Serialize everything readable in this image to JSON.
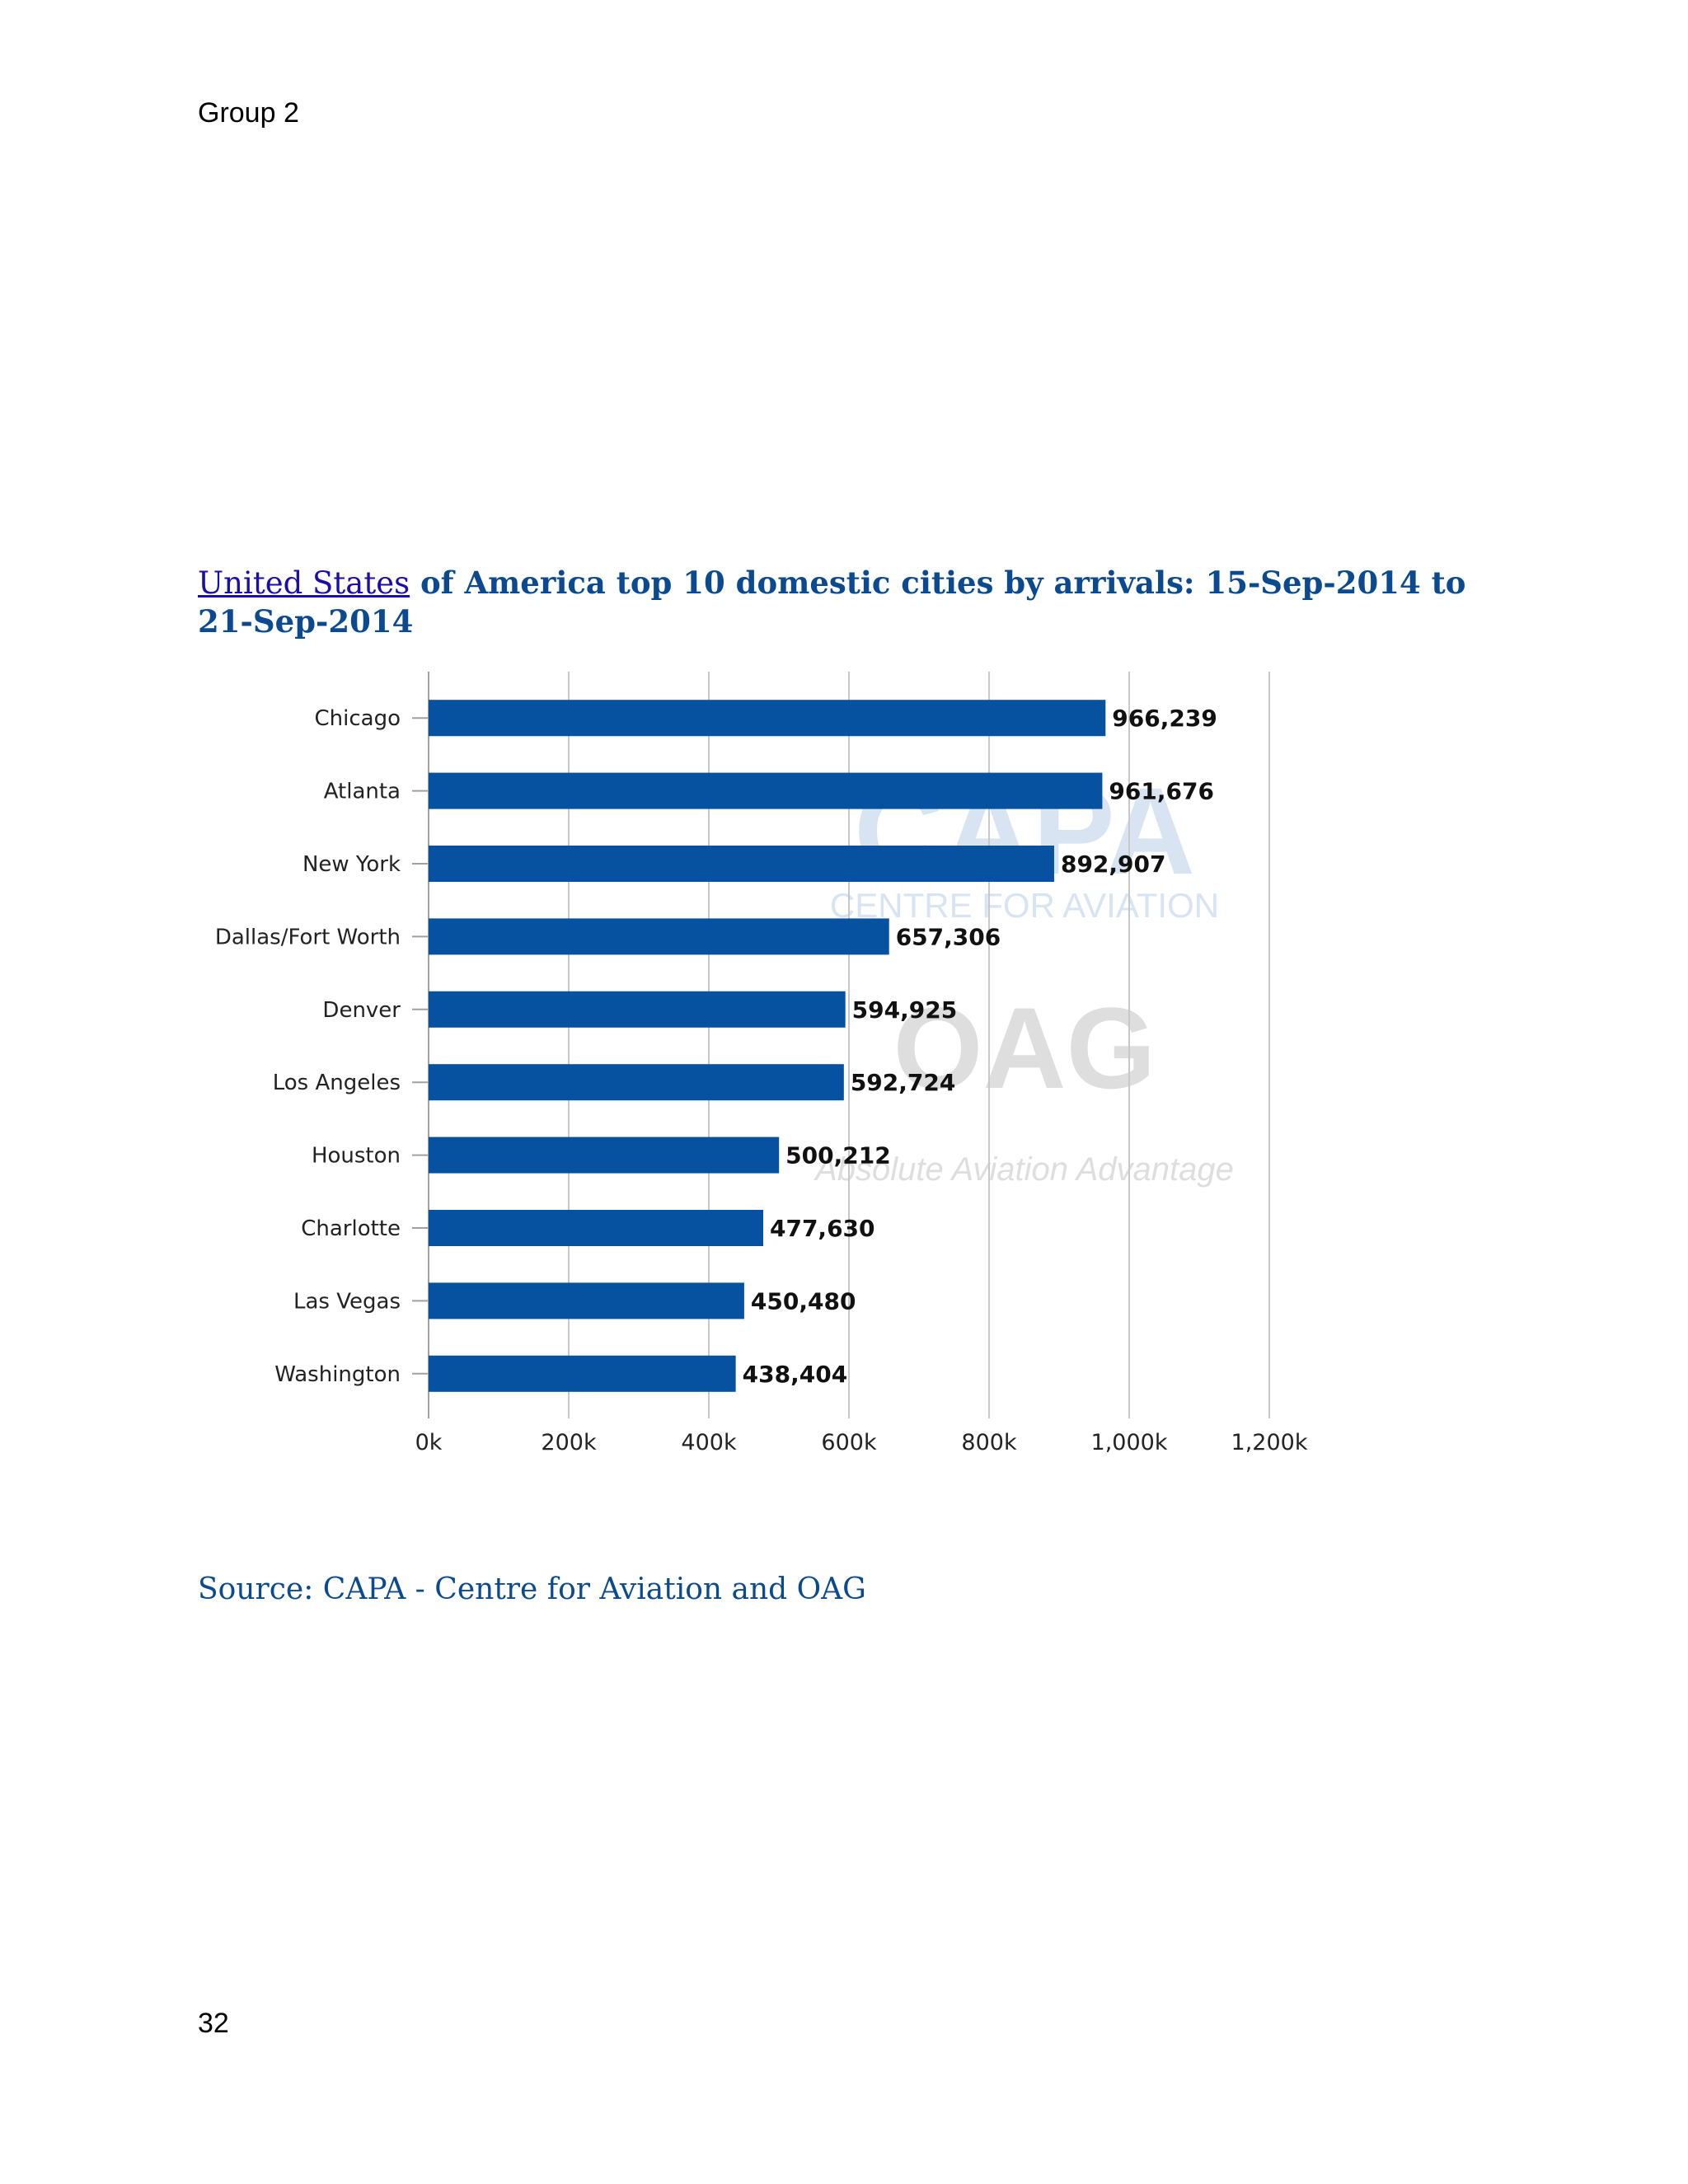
{
  "page": {
    "header": "Group 2",
    "page_number": "32"
  },
  "title": {
    "link_text": "United States",
    "rest": " of America top 10 domestic cities by arrivals: 15-Sep-2014 to 21-Sep-2014"
  },
  "source": "Source: CAPA - Centre for Aviation and OAG",
  "watermark": {
    "brand1": "CAPA",
    "brand1_sub": "CENTRE FOR AVIATION",
    "brand2": "OAG",
    "brand2_sub": "Absolute Aviation Advantage"
  },
  "colors": {
    "bar": "#0652a1",
    "title": "#0b4a8f",
    "link": "#1a0dab",
    "grid": "#c8c8c8"
  },
  "chart_data": {
    "type": "bar",
    "orientation": "horizontal",
    "categories": [
      "Chicago",
      "Atlanta",
      "New York",
      "Dallas/Fort Worth",
      "Denver",
      "Los Angeles",
      "Houston",
      "Charlotte",
      "Las Vegas",
      "Washington"
    ],
    "values": [
      966239,
      961676,
      892907,
      657306,
      594925,
      592724,
      500212,
      477630,
      450480,
      438404
    ],
    "data_labels": [
      "966,239",
      "961,676",
      "892,907",
      "657,306",
      "594,925",
      "592,724",
      "500,212",
      "477,630",
      "450,480",
      "438,404"
    ],
    "x_ticks": [
      0,
      200000,
      400000,
      600000,
      800000,
      1000000,
      1200000
    ],
    "x_tick_labels": [
      "0k",
      "200k",
      "400k",
      "600k",
      "800k",
      "1,000k",
      "1,200k"
    ],
    "xlim": [
      0,
      1200000
    ],
    "grid": true,
    "legend": "none"
  }
}
